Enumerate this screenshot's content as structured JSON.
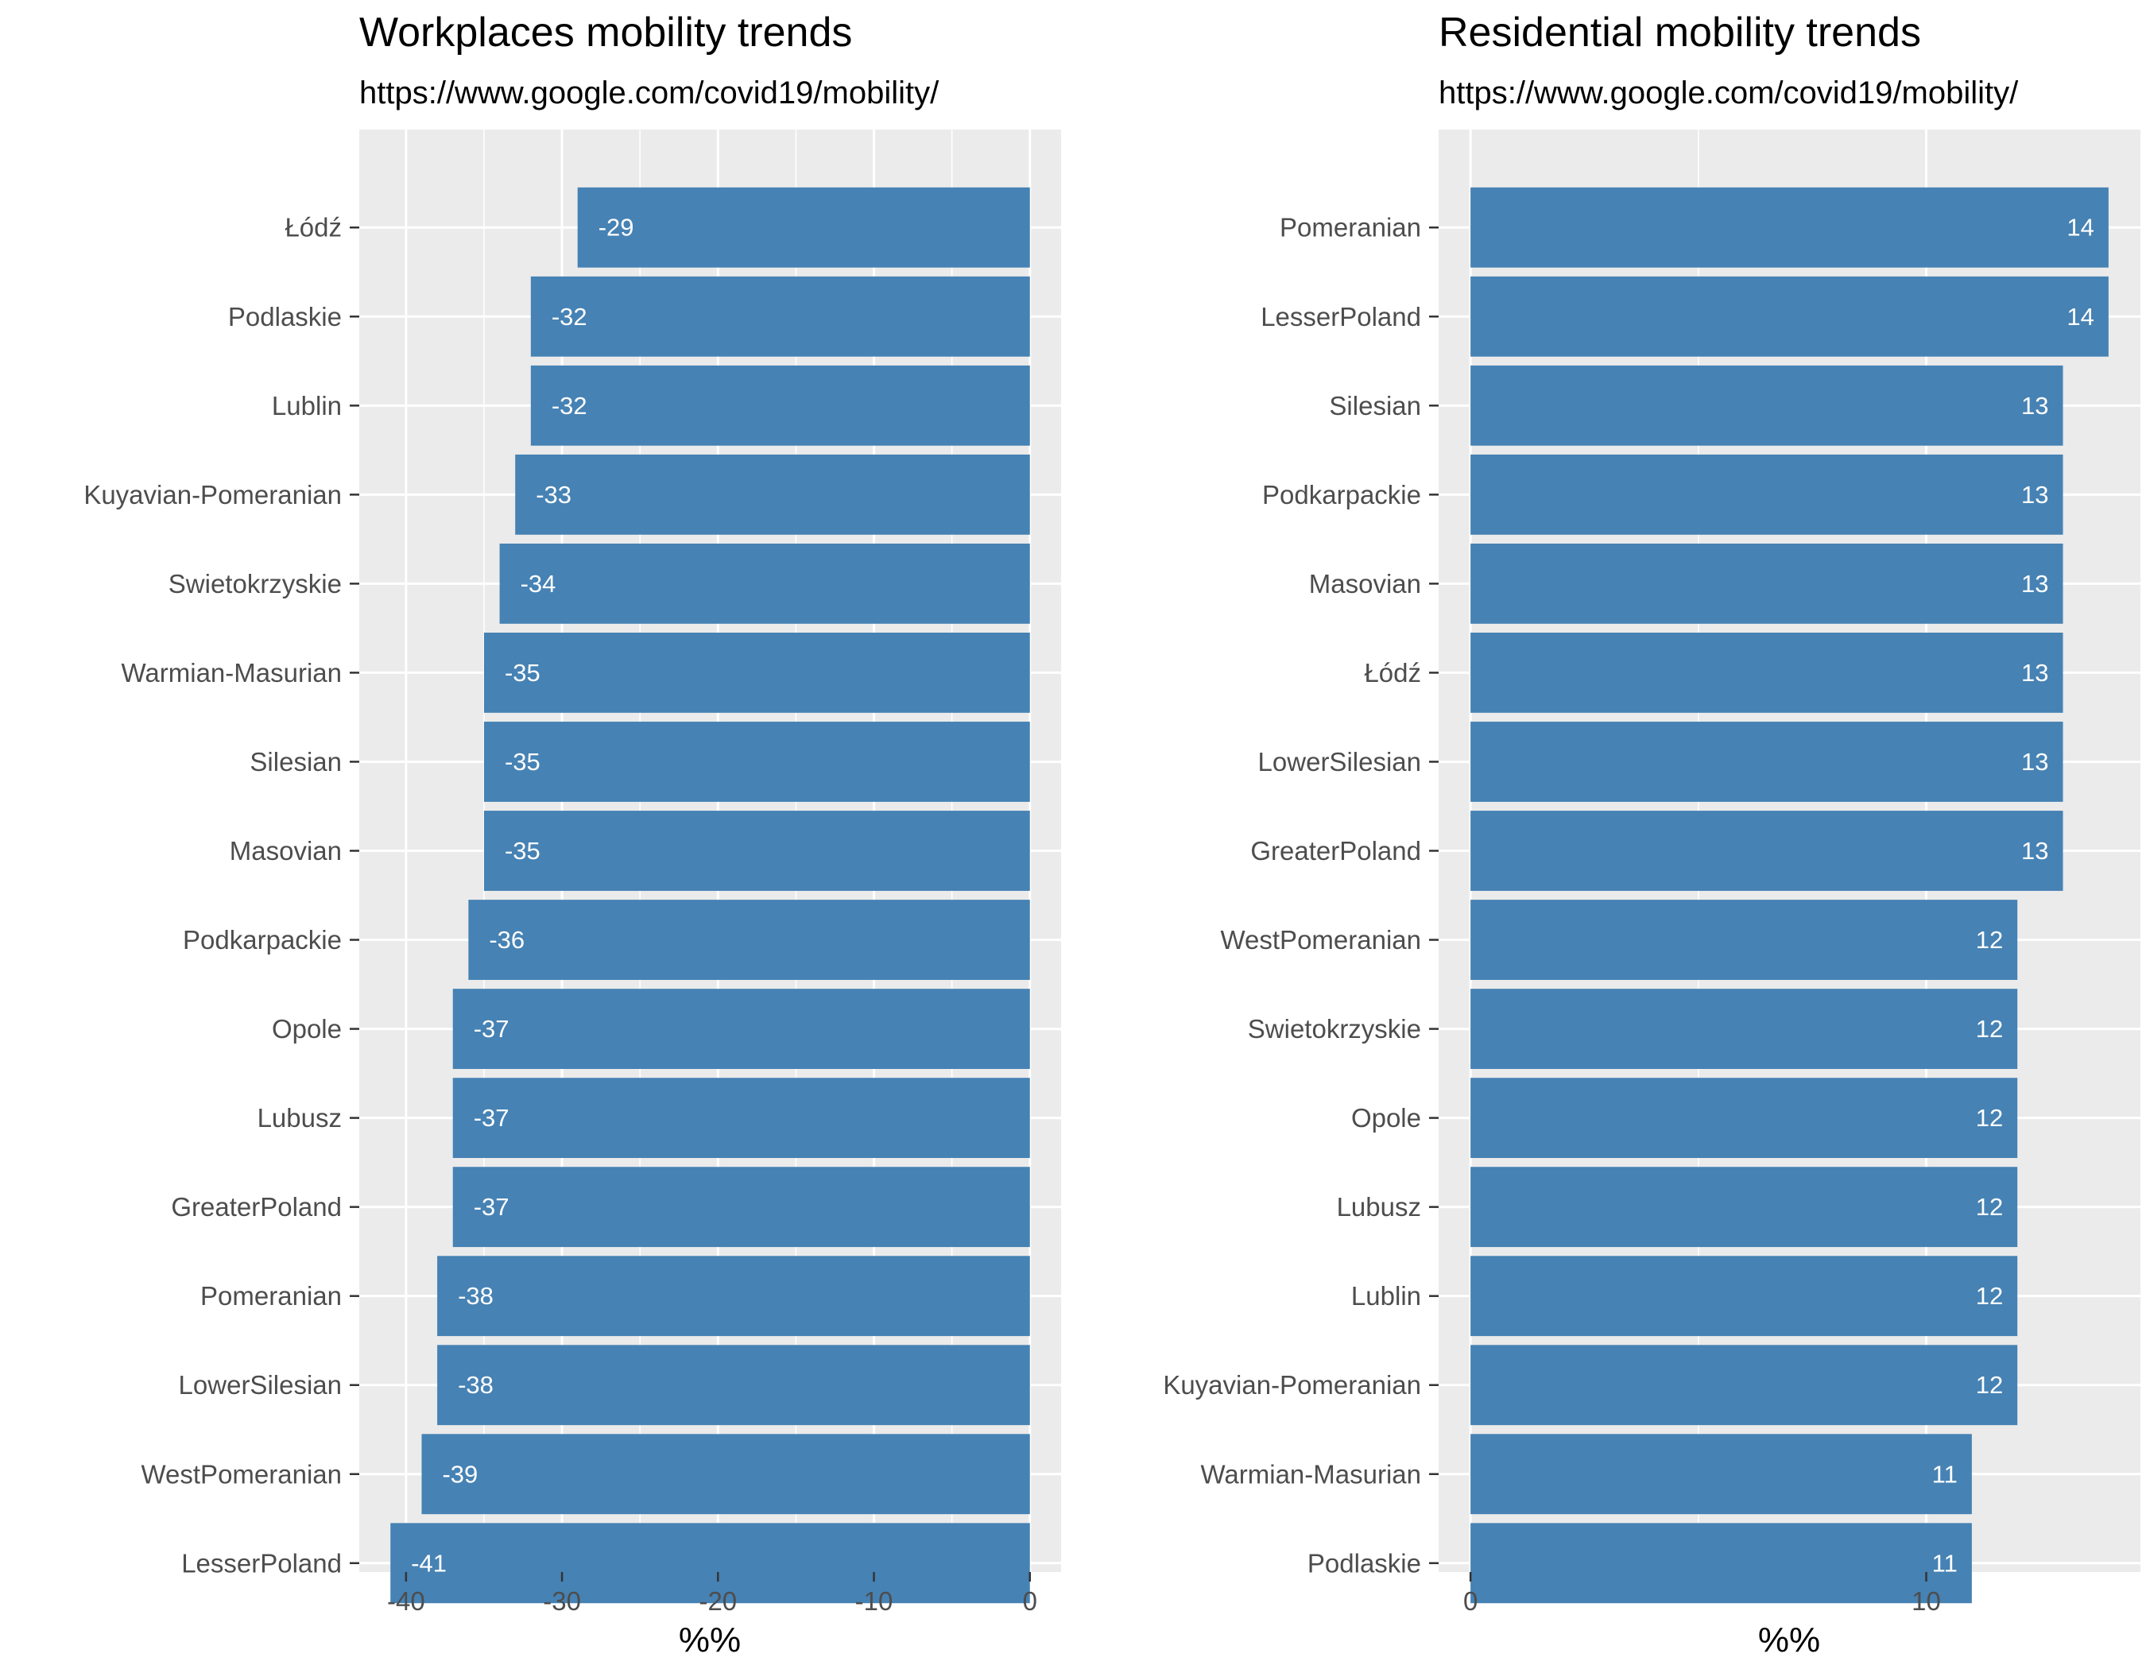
{
  "chart_data": [
    {
      "type": "bar",
      "orientation": "horizontal",
      "title": "Workplaces mobility trends",
      "subtitle": "https://www.google.com/covid19/mobility/",
      "xlabel": "%%",
      "ylabel": "",
      "xlim": [
        -43,
        2
      ],
      "xticks": [
        -40,
        -30,
        -20,
        -10,
        0
      ],
      "label_position": "inside-left",
      "bar_color": "#4682b4",
      "panel_background": "#ebebeb",
      "grid_color": "#ffffff",
      "categories": [
        "Łódź",
        "Podlaskie",
        "Lublin",
        "Kuyavian-Pomeranian",
        "Swietokrzyskie",
        "Warmian-Masurian",
        "Silesian",
        "Masovian",
        "Podkarpackie",
        "Opole",
        "Lubusz",
        "GreaterPoland",
        "Pomeranian",
        "LowerSilesian",
        "WestPomeranian",
        "LesserPoland"
      ],
      "values": [
        -29,
        -32,
        -32,
        -33,
        -34,
        -35,
        -35,
        -35,
        -36,
        -37,
        -37,
        -37,
        -38,
        -38,
        -39,
        -41
      ],
      "value_labels": [
        "-29",
        "-32",
        "-32",
        "-33",
        "-34",
        "-35",
        "-35",
        "-35",
        "-36",
        "-37",
        "-37",
        "-37",
        "-38",
        "-38",
        "-39",
        "-41"
      ]
    },
    {
      "type": "bar",
      "orientation": "horizontal",
      "title": "Residential mobility trends",
      "subtitle": "https://www.google.com/covid19/mobility/",
      "xlabel": "%%",
      "ylabel": "",
      "xlim": [
        -0.7,
        14.7
      ],
      "xticks": [
        0,
        10
      ],
      "label_position": "inside-right",
      "bar_color": "#4682b4",
      "panel_background": "#ebebeb",
      "grid_color": "#ffffff",
      "categories": [
        "Pomeranian",
        "LesserPoland",
        "Silesian",
        "Podkarpackie",
        "Masovian",
        "Łódź",
        "LowerSilesian",
        "GreaterPoland",
        "WestPomeranian",
        "Swietokrzyskie",
        "Opole",
        "Lubusz",
        "Lublin",
        "Kuyavian-Pomeranian",
        "Warmian-Masurian",
        "Podlaskie"
      ],
      "values": [
        14,
        14,
        13,
        13,
        13,
        13,
        13,
        13,
        12,
        12,
        12,
        12,
        12,
        12,
        11,
        11
      ],
      "value_labels": [
        "14",
        "14",
        "13",
        "13",
        "13",
        "13",
        "13",
        "13",
        "12",
        "12",
        "12",
        "12",
        "12",
        "12",
        "11",
        "11"
      ]
    }
  ]
}
